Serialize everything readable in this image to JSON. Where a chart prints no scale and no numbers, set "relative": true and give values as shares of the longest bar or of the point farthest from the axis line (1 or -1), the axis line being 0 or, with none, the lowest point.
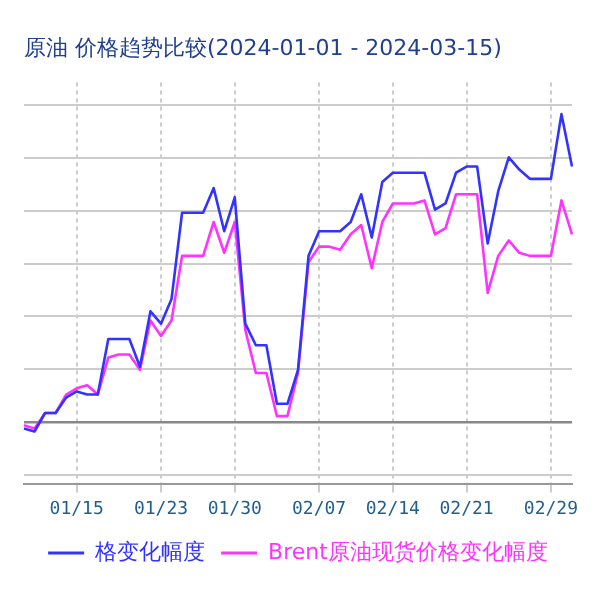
{
  "chart_data": {
    "type": "line",
    "title": "原油 价格趋势比较(2024-01-01 - 2024-03-15)",
    "relative": true,
    "grid": true,
    "legend": "bottom",
    "marker": "none",
    "line_style": "solid",
    "categories": [
      null,
      null,
      null,
      null,
      null,
      "01/15",
      null,
      null,
      null,
      null,
      null,
      null,
      null,
      "01/23",
      null,
      null,
      null,
      null,
      null,
      null,
      "01/30",
      null,
      null,
      null,
      null,
      null,
      null,
      null,
      "02/07",
      null,
      null,
      null,
      null,
      null,
      null,
      "02/14",
      null,
      null,
      null,
      null,
      null,
      null,
      "02/21",
      null,
      null,
      null,
      null,
      null,
      null,
      null,
      "02/29",
      null,
      null
    ],
    "series": [
      {
        "name": "格变化幅度",
        "color": "#3333ff",
        "values": [
          -0.02,
          -0.03,
          0.03,
          0.03,
          0.08,
          0.1,
          0.09,
          0.09,
          0.27,
          0.27,
          0.27,
          0.18,
          0.36,
          0.32,
          0.4,
          0.68,
          0.68,
          0.68,
          0.76,
          0.62,
          0.73,
          0.32,
          0.25,
          0.25,
          0.06,
          0.06,
          0.17,
          0.54,
          0.62,
          0.62,
          0.62,
          0.65,
          0.74,
          0.6,
          0.78,
          0.81,
          0.81,
          0.81,
          0.81,
          0.69,
          0.71,
          0.81,
          0.83,
          0.83,
          0.58,
          0.75,
          0.86,
          0.82,
          0.79,
          0.79,
          0.79,
          1,
          0.83
        ]
      },
      {
        "name": "Brent原油现货价格变化幅度",
        "color": "#ff33ff",
        "values": [
          -0.01,
          -0.02,
          0.03,
          0.03,
          0.09,
          0.11,
          0.12,
          0.09,
          0.21,
          0.22,
          0.22,
          0.17,
          0.33,
          0.28,
          0.33,
          0.54,
          0.54,
          0.54,
          0.65,
          0.55,
          0.65,
          0.3,
          0.16,
          0.16,
          0.02,
          0.02,
          0.16,
          0.52,
          0.57,
          0.57,
          0.56,
          0.61,
          0.64,
          0.5,
          0.65,
          0.71,
          0.71,
          0.71,
          0.72,
          0.61,
          0.63,
          0.74,
          0.74,
          0.74,
          0.42,
          0.54,
          0.59,
          0.55,
          0.54,
          0.54,
          0.54,
          0.72,
          0.61
        ]
      }
    ]
  }
}
